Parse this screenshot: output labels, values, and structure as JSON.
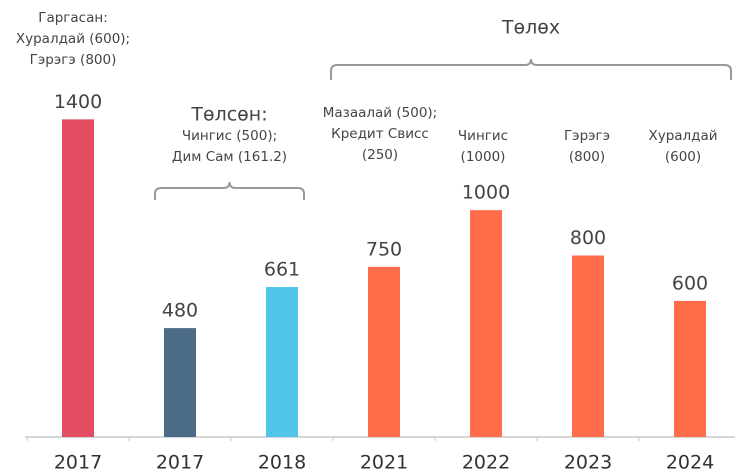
{
  "chart_data": {
    "type": "bar",
    "categories": [
      "2017",
      "2017",
      "2018",
      "2021",
      "2022",
      "2023",
      "2024"
    ],
    "values": [
      1400,
      480,
      661,
      750,
      1000,
      800,
      600
    ],
    "colors": [
      "#e24d62",
      "#4c6b87",
      "#4fc6e8",
      "#ff6d4a",
      "#ff6d4a",
      "#ff6d4a",
      "#ff6d4a"
    ],
    "ylim": [
      0,
      1600
    ],
    "annotations": [
      {
        "lines": [
          "Гаргасан:",
          "Хуралдай (600);",
          "Гэрэгэ (800)"
        ]
      },
      {
        "lines": [
          "Мазаалай (500);",
          "Кредит Свисс",
          "(250)"
        ]
      },
      {
        "lines": [
          "Чингис",
          "(1000)"
        ]
      },
      {
        "lines": [
          "Гэрэгэ",
          "(800)"
        ]
      },
      {
        "lines": [
          "Хуралдай",
          "(600)"
        ]
      }
    ],
    "brackets": [
      {
        "label": "Төлсөн:",
        "lines": [
          "Чингис (500);",
          "Дим Сам (161.2)"
        ]
      },
      {
        "label": "Төлөх"
      }
    ]
  }
}
